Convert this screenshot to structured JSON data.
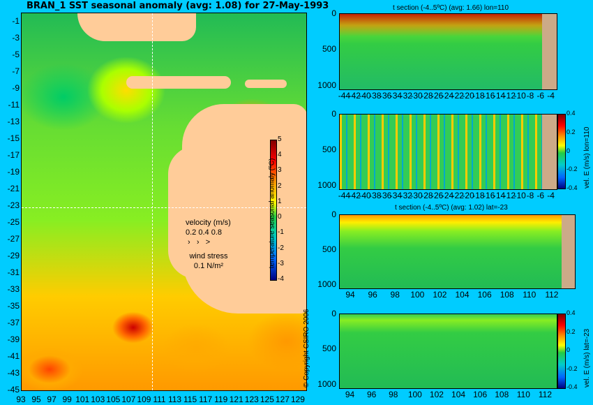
{
  "title": "BRAN_1  SST seasonal anomaly  (avg: 1.08) for 27-May-1993",
  "map": {
    "y_ticks": [
      "-1",
      "-3",
      "-5",
      "-7",
      "-9",
      "-11",
      "-13",
      "-15",
      "-17",
      "-19",
      "-21",
      "-23",
      "-25",
      "-27",
      "-29",
      "-31",
      "-33",
      "-35",
      "-37",
      "-39",
      "-41",
      "-43",
      "-45"
    ],
    "x_ticks": [
      "93",
      "95",
      "97",
      "99",
      "101",
      "103",
      "105",
      "107",
      "109",
      "111",
      "113",
      "115",
      "117",
      "119",
      "121",
      "123",
      "125",
      "127",
      "129"
    ],
    "colorbar_ticks": [
      "5",
      "4",
      "3",
      "2",
      "1",
      "0",
      "-1",
      "-2",
      "-3",
      "-4"
    ],
    "colorbar_label": "temperature seasonal anomaly (ºC)",
    "velocity_label": "velocity (m/s)",
    "velocity_scale": "0.2 0.4 0.8",
    "wind_label": "wind stress",
    "wind_scale": "0.1 N/m²",
    "copyright": "© Copyright CSIRO 2006"
  },
  "panels": [
    {
      "title": "t section (-4..5ºC) (avg: 1.66) lon=110",
      "y_ticks": [
        "0",
        "500",
        "1000"
      ],
      "x_ticks": [
        "-44",
        "-42",
        "-40",
        "-38",
        "-36",
        "-34",
        "-32",
        "-30",
        "-28",
        "-26",
        "-24",
        "-22",
        "-20",
        "-18",
        "-16",
        "-14",
        "-12",
        "-10",
        "-8",
        "-6",
        "-4"
      ]
    },
    {
      "title": "",
      "y_ticks": [
        "0",
        "500",
        "1000"
      ],
      "x_ticks": [
        "-44",
        "-42",
        "-40",
        "-38",
        "-36",
        "-34",
        "-32",
        "-30",
        "-28",
        "-26",
        "-24",
        "-22",
        "-20",
        "-18",
        "-16",
        "-14",
        "-12",
        "-10",
        "-8",
        "-6",
        "-4"
      ],
      "cbar_ticks": [
        "0.4",
        "0.2",
        "0",
        "-0.2",
        "-0.4"
      ],
      "cbar_label": "vel. E (m/s) lon=110"
    },
    {
      "title": "t section (-4..5ºC) (avg: 1.02) lat=-23",
      "y_ticks": [
        "0",
        "500",
        "1000"
      ],
      "x_ticks": [
        "94",
        "96",
        "98",
        "100",
        "102",
        "104",
        "106",
        "108",
        "110",
        "112"
      ]
    },
    {
      "title": "",
      "y_ticks": [
        "0",
        "500",
        "1000"
      ],
      "x_ticks": [
        "94",
        "96",
        "98",
        "100",
        "102",
        "104",
        "106",
        "108",
        "110",
        "112"
      ],
      "cbar_ticks": [
        "0.4",
        "0.2",
        "0",
        "-0.2",
        "-0.4"
      ],
      "cbar_label": "vel. E (m/s) lat=-23"
    }
  ],
  "chart_data": [
    {
      "type": "heatmap",
      "title": "BRAN_1  SST seasonal anomaly  (avg: 1.08) for 27-May-1993",
      "xlim": [
        93,
        130
      ],
      "ylim": [
        -45,
        0
      ],
      "colorbar_range": [
        -4,
        5
      ],
      "colorbar_label": "temperature seasonal anomaly (ºC)"
    },
    {
      "type": "heatmap",
      "title": "t section (-4..5ºC) (avg: 1.66) lon=110",
      "xlim": [
        -45,
        -3
      ],
      "ylim": [
        1050,
        0
      ]
    },
    {
      "type": "heatmap",
      "title": "",
      "xlim": [
        -45,
        -3
      ],
      "ylim": [
        1050,
        0
      ],
      "colorbar_range": [
        -0.4,
        0.4
      ],
      "colorbar_label": "vel. E (m/s) lon=110"
    },
    {
      "type": "heatmap",
      "title": "t section (-4..5ºC) (avg: 1.02) lat=-23",
      "xlim": [
        93,
        113
      ],
      "ylim": [
        1050,
        0
      ]
    },
    {
      "type": "heatmap",
      "title": "",
      "xlim": [
        93,
        113
      ],
      "ylim": [
        1050,
        0
      ],
      "colorbar_range": [
        -0.4,
        0.4
      ],
      "colorbar_label": "vel. E (m/s) lat=-23"
    }
  ]
}
